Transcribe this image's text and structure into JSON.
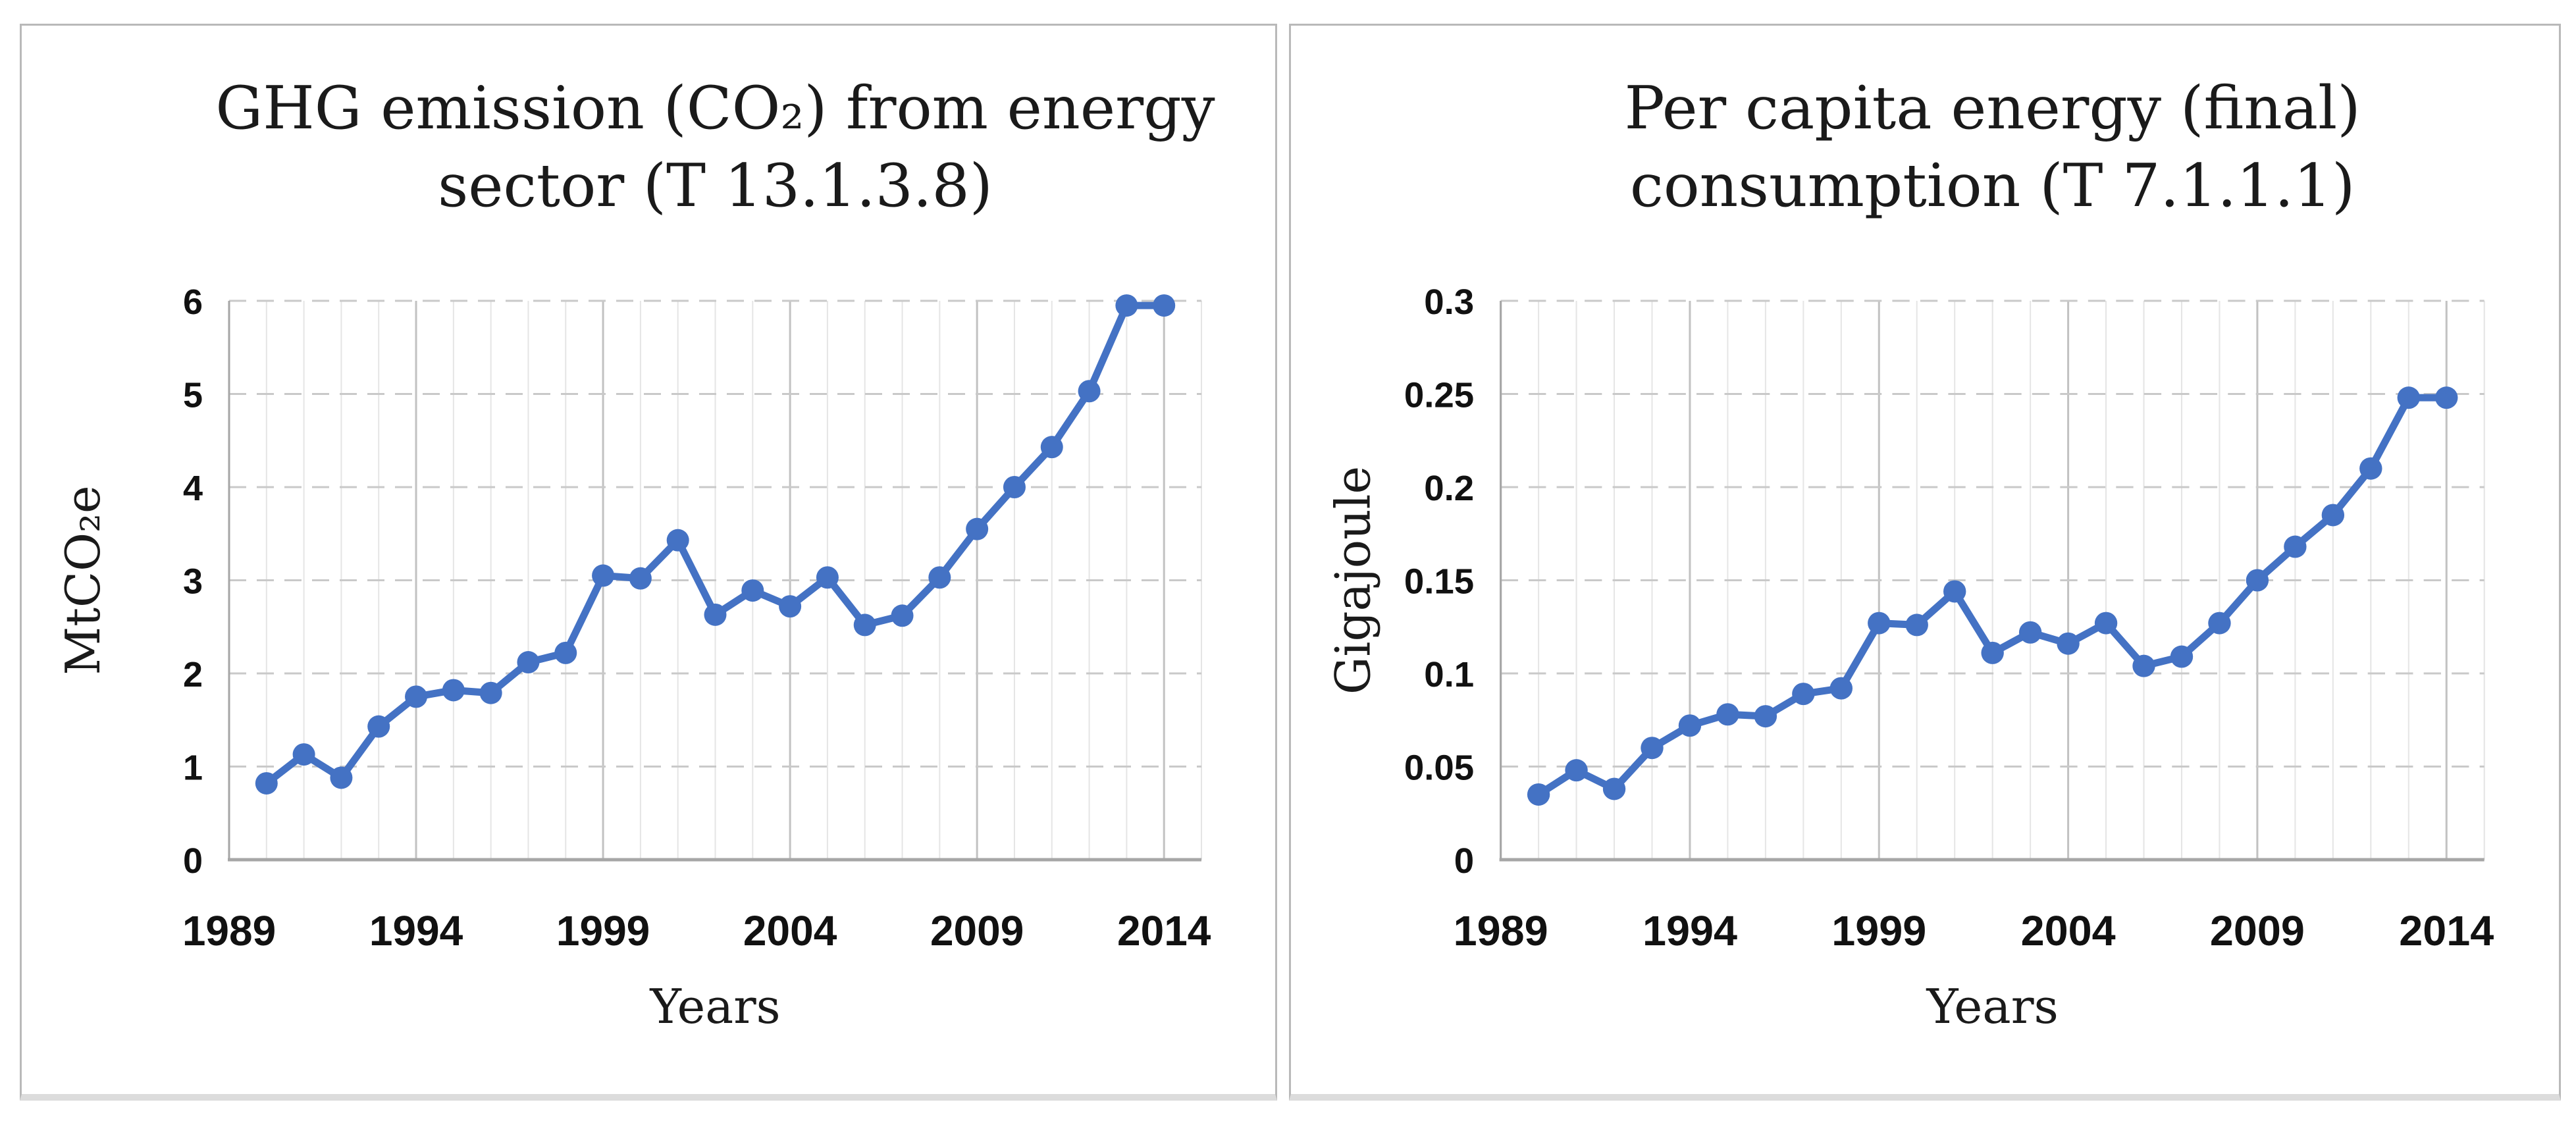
{
  "figure": {
    "background": "#ffffff",
    "panel_border_color": "#b9b9b9",
    "accent_color": "#4472C4"
  },
  "chart_data": [
    {
      "type": "line",
      "title": "GHG emission (CO₂) from energy sector (T 13.1.3.8)",
      "title_lines": [
        "GHG emission (CO₂) from energy",
        "sector (T 13.1.3.8)"
      ],
      "xlabel": "Years",
      "ylabel": "MtCO₂e",
      "x": [
        1990,
        1991,
        1992,
        1993,
        1994,
        1995,
        1996,
        1997,
        1998,
        1999,
        2000,
        2001,
        2002,
        2003,
        2004,
        2005,
        2006,
        2007,
        2008,
        2009,
        2010,
        2011,
        2012,
        2013,
        2014
      ],
      "values": [
        0.82,
        1.13,
        0.88,
        1.43,
        1.75,
        1.82,
        1.79,
        2.12,
        2.22,
        3.05,
        3.02,
        3.43,
        2.63,
        2.89,
        2.72,
        3.03,
        2.52,
        2.62,
        3.03,
        3.55,
        4.0,
        4.43,
        5.03,
        5.95,
        5.95
      ],
      "xlim": [
        1989,
        2015
      ],
      "ylim": [
        0,
        6
      ],
      "xticks": [
        1989,
        1994,
        1999,
        2004,
        2009,
        2014
      ],
      "xtick_labels": [
        "1989",
        "1994",
        "1999",
        "2004",
        "2009",
        "2014"
      ],
      "yticks": [
        0,
        1,
        2,
        3,
        4,
        5,
        6
      ],
      "ytick_labels": [
        "0",
        "1",
        "2",
        "3",
        "4",
        "5",
        "6"
      ],
      "grid": true,
      "legend": false,
      "line_color": "#4472C4",
      "marker": "circle"
    },
    {
      "type": "line",
      "title": "Per capita energy (final) consumption (T 7.1.1.1)",
      "title_lines": [
        "Per capita energy (final)",
        "consumption (T 7.1.1.1)"
      ],
      "xlabel": "Years",
      "ylabel": "Gigajoule",
      "x": [
        1990,
        1991,
        1992,
        1993,
        1994,
        1995,
        1996,
        1997,
        1998,
        1999,
        2000,
        2001,
        2002,
        2003,
        2004,
        2005,
        2006,
        2007,
        2008,
        2009,
        2010,
        2011,
        2012,
        2013,
        2014
      ],
      "values": [
        0.035,
        0.048,
        0.038,
        0.06,
        0.072,
        0.078,
        0.077,
        0.089,
        0.092,
        0.127,
        0.126,
        0.144,
        0.111,
        0.122,
        0.116,
        0.127,
        0.104,
        0.109,
        0.127,
        0.15,
        0.168,
        0.185,
        0.21,
        0.248,
        0.248
      ],
      "xlim": [
        1989,
        2015
      ],
      "ylim": [
        0,
        0.3
      ],
      "xticks": [
        1989,
        1994,
        1999,
        2004,
        2009,
        2014
      ],
      "xtick_labels": [
        "1989",
        "1994",
        "1999",
        "2004",
        "2009",
        "2014"
      ],
      "yticks": [
        0,
        0.05,
        0.1,
        0.15,
        0.2,
        0.25,
        0.3
      ],
      "ytick_labels": [
        "0",
        "0.05",
        "0.1",
        "0.15",
        "0.2",
        "0.25",
        "0.3"
      ],
      "grid": true,
      "legend": false,
      "line_color": "#4472C4",
      "marker": "circle"
    }
  ]
}
